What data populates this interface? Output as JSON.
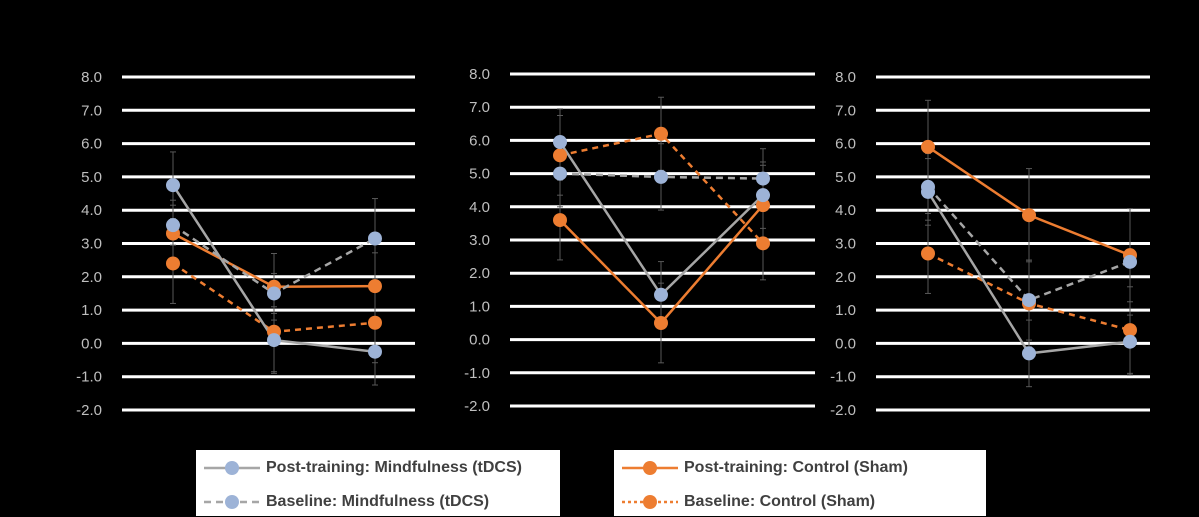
{
  "colors": {
    "background": "#000000",
    "gridline": "#ffffff",
    "tick_label": "#bfbfbf",
    "mindfulness": "#9db3d7",
    "mindfulness_line": "#a6a6a6",
    "control": "#ed7d31",
    "error_bar": "#595959"
  },
  "legend": {
    "items": [
      {
        "label": "Post-training: Mindfulness (tDCS)",
        "series": "post_mindfulness",
        "style": "solid",
        "color": "#9db3d7",
        "line_color": "#a6a6a6"
      },
      {
        "label": "Post-training: Control (Sham)",
        "series": "post_control",
        "style": "solid",
        "color": "#ed7d31",
        "line_color": "#ed7d31"
      },
      {
        "label": "Baseline: Mindfulness (tDCS)",
        "series": "base_mindfulness",
        "style": "dashed",
        "color": "#9db3d7",
        "line_color": "#a6a6a6"
      },
      {
        "label": "Baseline: Control (Sham)",
        "series": "base_control",
        "style": "dotted",
        "color": "#ed7d31",
        "line_color": "#ed7d31"
      }
    ]
  },
  "chart_data": [
    {
      "type": "line",
      "ylim": [
        -2.0,
        8.0
      ],
      "yticks": [
        "8.0",
        "7.0",
        "6.0",
        "5.0",
        "4.0",
        "3.0",
        "2.0",
        "1.0",
        "0.0",
        "-1.0",
        "-2.0"
      ],
      "x": [
        1,
        2,
        3
      ],
      "grid": true,
      "series": [
        {
          "name": "Post-training: Mindfulness (tDCS)",
          "key": "post_mindfulness",
          "values": [
            4.75,
            0.1,
            -0.25
          ],
          "error": [
            1.0,
            1.0,
            1.0
          ]
        },
        {
          "name": "Baseline: Mindfulness (tDCS)",
          "key": "base_mindfulness",
          "values": [
            3.55,
            1.5,
            3.15
          ],
          "error": [
            0.6,
            0.6,
            1.2
          ]
        },
        {
          "name": "Post-training: Control (Sham)",
          "key": "post_control",
          "values": [
            3.3,
            1.7,
            1.72
          ],
          "error": [
            1.0,
            1.0,
            1.0
          ]
        },
        {
          "name": "Baseline: Control (Sham)",
          "key": "base_control",
          "values": [
            2.4,
            0.35,
            0.62
          ],
          "error": [
            1.2,
            1.2,
            1.2
          ]
        }
      ]
    },
    {
      "type": "line",
      "ylim": [
        -2.0,
        8.0
      ],
      "yticks": [
        "8.0",
        "7.0",
        "6.0",
        "5.0",
        "4.0",
        "3.0",
        "2.0",
        "1.0",
        "0.0",
        "-1.0",
        "-2.0"
      ],
      "x": [
        1,
        2,
        3
      ],
      "grid": true,
      "series": [
        {
          "name": "Post-training: Mindfulness (tDCS)",
          "key": "post_mindfulness",
          "values": [
            5.95,
            1.35,
            4.35
          ],
          "error": [
            1.0,
            1.0,
            1.0
          ]
        },
        {
          "name": "Baseline: Mindfulness (tDCS)",
          "key": "base_mindfulness",
          "values": [
            5.0,
            4.9,
            4.85
          ],
          "error": [
            1.0,
            1.0,
            0.9
          ]
        },
        {
          "name": "Post-training: Control (Sham)",
          "key": "post_control",
          "values": [
            3.6,
            0.5,
            4.05
          ],
          "error": [
            1.2,
            1.2,
            1.2
          ]
        },
        {
          "name": "Baseline: Control (Sham)",
          "key": "base_control",
          "values": [
            5.55,
            6.2,
            2.9
          ],
          "error": [
            1.2,
            1.1,
            1.1
          ]
        }
      ]
    },
    {
      "type": "line",
      "ylim": [
        -2.0,
        8.0
      ],
      "yticks": [
        "8.0",
        "7.0",
        "6.0",
        "5.0",
        "4.0",
        "3.0",
        "2.0",
        "1.0",
        "0.0",
        "-1.0",
        "-2.0"
      ],
      "x": [
        1,
        2,
        3
      ],
      "grid": true,
      "series": [
        {
          "name": "Post-training: Mindfulness (tDCS)",
          "key": "post_mindfulness",
          "values": [
            4.55,
            -0.3,
            0.05
          ],
          "error": [
            1.0,
            1.0,
            1.0
          ]
        },
        {
          "name": "Baseline: Mindfulness (tDCS)",
          "key": "base_mindfulness",
          "values": [
            4.7,
            1.3,
            2.45
          ],
          "error": [
            1.0,
            1.2,
            1.6
          ]
        },
        {
          "name": "Post-training: Control (Sham)",
          "key": "post_control",
          "values": [
            5.9,
            3.85,
            2.65
          ],
          "error": [
            1.4,
            1.4,
            1.4
          ]
        },
        {
          "name": "Baseline: Control (Sham)",
          "key": "base_control",
          "values": [
            2.7,
            1.2,
            0.4
          ],
          "error": [
            1.2,
            1.3,
            1.3
          ]
        }
      ]
    }
  ]
}
